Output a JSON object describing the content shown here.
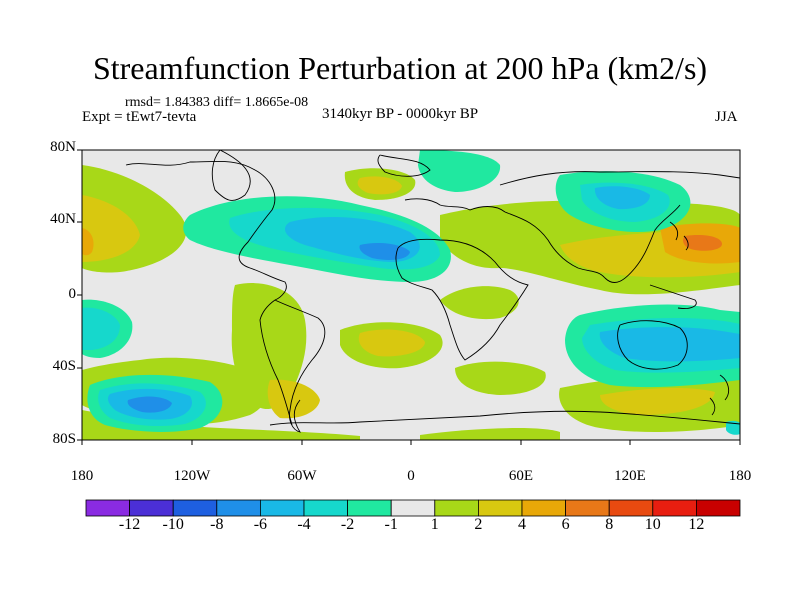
{
  "title": "Streamfunction Perturbation at 200 hPa (km2/s)",
  "stats": "rmsd= 1.84383 diff= 1.8665e-08",
  "experiment": "Expt = tEwt7-tevta",
  "period": "3140kyr BP - 0000kyr BP",
  "season": "JJA",
  "y_ticks": [
    "80N",
    "40N",
    "0",
    "40S",
    "80S"
  ],
  "x_ticks": [
    "180",
    "120W",
    "60W",
    "0",
    "60E",
    "120E",
    "180"
  ],
  "colorbar": {
    "labels": [
      "-12",
      "-10",
      "-8",
      "-6",
      "-4",
      "-2",
      "-1",
      "1",
      "2",
      "4",
      "6",
      "8",
      "10",
      "12"
    ],
    "colors": [
      "#8a2be2",
      "#4b2fd6",
      "#1e5fe0",
      "#1f8fe8",
      "#19b9e6",
      "#16d8cc",
      "#20e8a0",
      "#e8e8e8",
      "#a8d818",
      "#d8c810",
      "#e8a808",
      "#e87818",
      "#e84a10",
      "#e81e10",
      "#c80000"
    ]
  }
}
